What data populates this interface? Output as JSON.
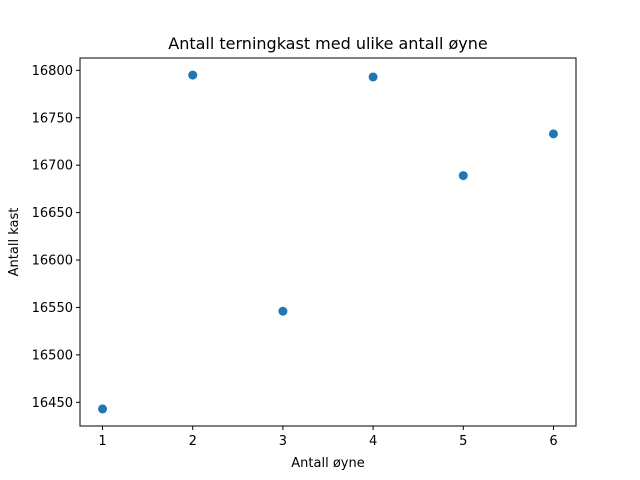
{
  "chart_data": {
    "type": "scatter",
    "title": "Antall terningkast med ulike antall øyne",
    "xlabel": "Antall øyne",
    "ylabel": "Antall kast",
    "x": [
      1,
      2,
      3,
      4,
      5,
      6
    ],
    "y": [
      16443,
      16795,
      16546,
      16793,
      16689,
      16733
    ],
    "xlim": [
      0.75,
      6.25
    ],
    "ylim": [
      16425,
      16813
    ],
    "xticks": [
      1,
      2,
      3,
      4,
      5,
      6
    ],
    "yticks": [
      16450,
      16500,
      16550,
      16600,
      16650,
      16700,
      16750,
      16800
    ],
    "marker_color": "#1f77b4",
    "grid": false,
    "legend": "none"
  }
}
